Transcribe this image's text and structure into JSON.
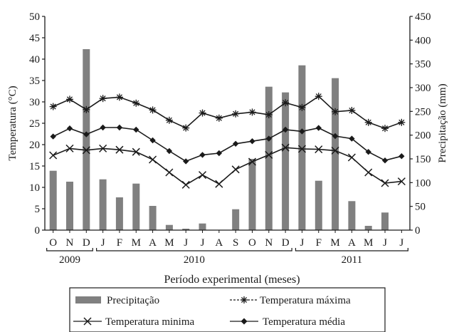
{
  "chart_data": {
    "type": "bar",
    "title": "",
    "xlabel": "Período experimental (meses)",
    "ylabel_left": "Temperatura (°C)",
    "ylabel_right": "Precipitação (mm)",
    "ylim_left": [
      0,
      50
    ],
    "ylim_right": [
      0,
      450
    ],
    "yticks_left": [
      "0",
      "5",
      "10",
      "15",
      "20",
      "25",
      "30",
      "35",
      "40",
      "45",
      "50"
    ],
    "yticks_right": [
      "0",
      "50",
      "100",
      "150",
      "200",
      "250",
      "300",
      "350",
      "400",
      "450"
    ],
    "categories": [
      "O",
      "N",
      "D",
      "J",
      "F",
      "M",
      "A",
      "M",
      "J",
      "J",
      "A",
      "S",
      "O",
      "N",
      "D",
      "J",
      "F",
      "M",
      "A",
      "M",
      "J",
      "J"
    ],
    "year_groups": [
      {
        "label": "2009",
        "start": 0,
        "end": 2
      },
      {
        "label": "2010",
        "start": 3,
        "end": 14
      },
      {
        "label": "2011",
        "start": 15,
        "end": 21
      }
    ],
    "grid": false,
    "legend_placement": "bottom",
    "series": [
      {
        "name": "Precipitação",
        "kind": "bar",
        "axis": "right",
        "color": "#808080",
        "values": [
          125,
          102,
          381,
          107,
          69,
          98,
          51,
          11,
          3,
          14,
          0,
          44,
          150,
          302,
          290,
          347,
          104,
          320,
          61,
          9,
          37,
          0
        ]
      },
      {
        "name": "Temperatura máxima",
        "kind": "line",
        "axis": "left",
        "marker": "asterisk",
        "color": "#1a1a1a",
        "values": [
          28.9,
          30.6,
          28.2,
          30.8,
          31.1,
          29.7,
          28.1,
          25.7,
          23.9,
          27.4,
          26.2,
          27.2,
          27.6,
          27.0,
          29.8,
          28.7,
          31.3,
          27.7,
          28.0,
          25.2,
          23.8,
          25.2
        ]
      },
      {
        "name": "Temperatura média",
        "kind": "line",
        "axis": "left",
        "marker": "diamond",
        "color": "#1a1a1a",
        "values": [
          21.9,
          23.8,
          22.4,
          24.0,
          24.0,
          23.5,
          21.0,
          18.5,
          16.1,
          17.6,
          18.0,
          20.2,
          20.8,
          21.4,
          23.5,
          23.1,
          23.9,
          22.0,
          21.4,
          18.3,
          16.3,
          17.3
        ]
      },
      {
        "name": "Temperatura minima",
        "kind": "line",
        "axis": "left",
        "marker": "x",
        "color": "#1a1a1a",
        "values": [
          17.5,
          19.1,
          18.7,
          19.1,
          18.8,
          18.3,
          16.5,
          13.5,
          10.6,
          12.9,
          10.8,
          14.2,
          16.0,
          17.6,
          19.3,
          19.0,
          18.9,
          18.6,
          17.0,
          13.5,
          11.0,
          11.4
        ]
      }
    ]
  }
}
